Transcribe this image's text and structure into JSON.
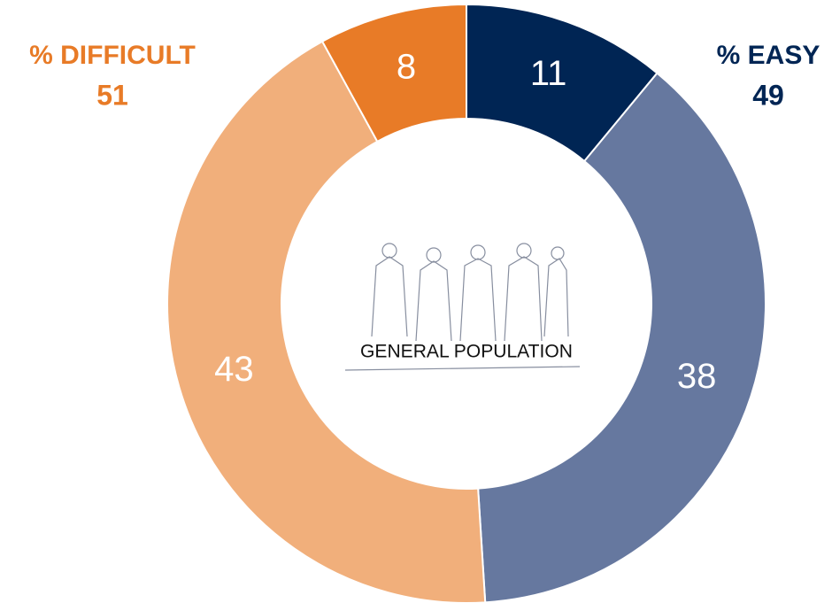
{
  "chart_data": {
    "type": "donut",
    "values": [
      11,
      38,
      43,
      8
    ],
    "colors": [
      "#002554",
      "#66789f",
      "#f1af7b",
      "#e87b27"
    ],
    "center_label": "GENERAL POPULATION",
    "groups": [
      {
        "name": "% DIFFICULT",
        "value": 51,
        "color": "#e87b27"
      },
      {
        "name": "% EASY",
        "value": 49,
        "color": "#002554"
      }
    ]
  }
}
